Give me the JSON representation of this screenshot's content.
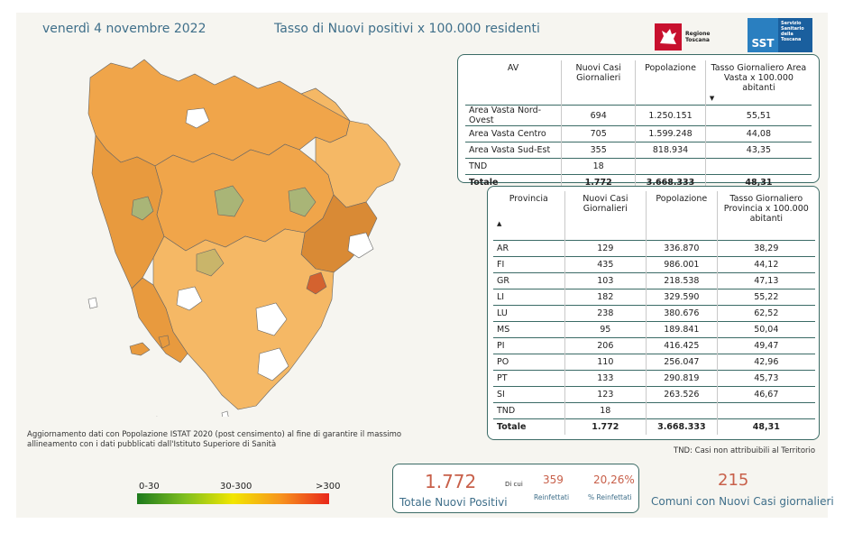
{
  "header": {
    "date": "venerdì 4 novembre 2022",
    "title": "Tasso di Nuovi positivi x 100.000 residenti"
  },
  "logos": {
    "regione": "Regione Toscana",
    "sst_short": "SST",
    "sst_long": "Servizio Sanitario della Toscana"
  },
  "av_table": {
    "headers": [
      "AV",
      "Nuovi Casi Giornalieri",
      "Popolazione",
      "Tasso Giornaliero Area Vasta x 100.000 abitanti"
    ],
    "sort_icon": "sort-desc-icon",
    "rows": [
      [
        "Area Vasta Nord-Ovest",
        "694",
        "1.250.151",
        "55,51"
      ],
      [
        "Area Vasta Centro",
        "705",
        "1.599.248",
        "44,08"
      ],
      [
        "Area Vasta Sud-Est",
        "355",
        "818.934",
        "43,35"
      ],
      [
        "TND",
        "18",
        "",
        ""
      ]
    ],
    "total": [
      "Totale",
      "1.772",
      "3.668.333",
      "48,31"
    ]
  },
  "prov_table": {
    "headers": [
      "Provincia",
      "Nuovi Casi Giornalieri",
      "Popolazione",
      "Tasso Giornaliero Provincia x 100.000 abitanti"
    ],
    "sort_icon": "sort-asc-icon",
    "rows": [
      [
        "AR",
        "129",
        "336.870",
        "38,29"
      ],
      [
        "FI",
        "435",
        "986.001",
        "44,12"
      ],
      [
        "GR",
        "103",
        "218.538",
        "47,13"
      ],
      [
        "LI",
        "182",
        "329.590",
        "55,22"
      ],
      [
        "LU",
        "238",
        "380.676",
        "62,52"
      ],
      [
        "MS",
        "95",
        "189.841",
        "50,04"
      ],
      [
        "PI",
        "206",
        "416.425",
        "49,47"
      ],
      [
        "PO",
        "110",
        "256.047",
        "42,96"
      ],
      [
        "PT",
        "133",
        "290.819",
        "45,73"
      ],
      [
        "SI",
        "123",
        "263.526",
        "46,67"
      ],
      [
        "TND",
        "18",
        "",
        ""
      ]
    ],
    "total": [
      "Totale",
      "1.772",
      "3.668.333",
      "48,31"
    ]
  },
  "notes": {
    "update": "Aggiornamento dati con Popolazione ISTAT 2020 (post censimento) al fine di garantire il massimo allineamento con i dati pubblicati dall'Istituto Superiore di Sanità",
    "tnd": "TND:  Casi non attribuibili al Territorio"
  },
  "legend": {
    "low": "0-30",
    "mid": "30-300",
    "high": ">300",
    "colors": [
      "#1d7a1d",
      "#7fbf1f",
      "#f2e600",
      "#f7931e",
      "#e8261a"
    ]
  },
  "kpi": {
    "total_value": "1.772",
    "total_label": "Totale Nuovi Positivi",
    "di_cui": "Di cui",
    "reinfected_value": "359",
    "reinfected_label": "Reinfettati",
    "pct_value": "20,26%",
    "pct_label": "% Reinfettati",
    "comuni_value": "215",
    "comuni_label": "Comuni con Nuovi Casi giornalieri"
  },
  "map": {
    "region": "Toscana",
    "fill_colors": [
      "#f0a54a",
      "#e89a3e",
      "#f5b865",
      "#d98a35",
      "#c9b56a",
      "#a9b577",
      "#d4622f",
      "#ffffff"
    ]
  }
}
